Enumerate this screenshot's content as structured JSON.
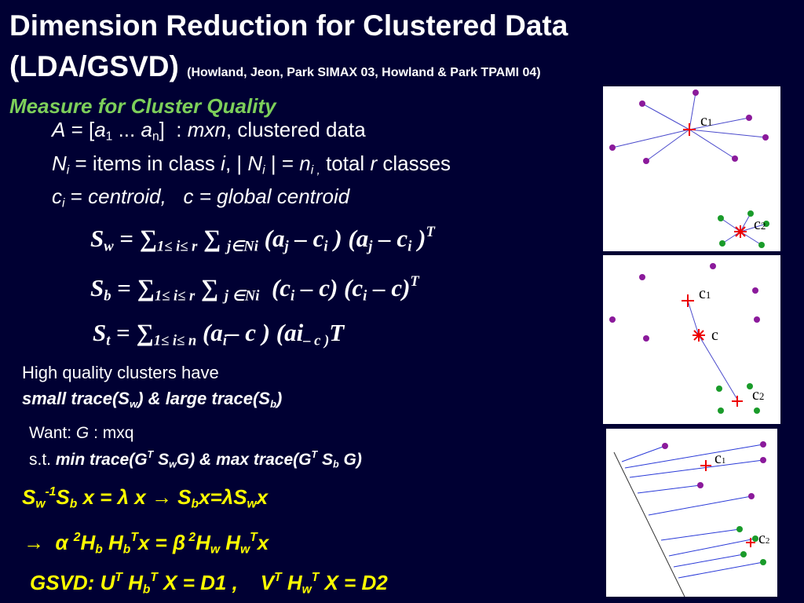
{
  "title": [
    "Dimension Reduction for Clustered Data",
    "(LDA/GSVD)",
    "(Howland, Jeon, Park SIMAX 03, Howland & Park TPAMI 04)"
  ],
  "subtitle": "Measure for Cluster Quality",
  "defs": [
    [
      "A",
      " = [",
      "a",
      "1",
      " ... ",
      "a",
      "n",
      "]  : ",
      "mxn",
      ", clustered data"
    ],
    [
      "N",
      "i",
      " = items in class ",
      "i",
      ", | ",
      "N",
      "i",
      " | = ",
      "n",
      "i ,",
      " total ",
      "r",
      " classes"
    ],
    [
      "c",
      "i",
      " = ",
      "centroid,   c = global centroid"
    ]
  ],
  "formulas": [
    [
      "S",
      "w",
      " = ∑",
      "1≤ i≤ r",
      " ∑ ",
      "j∈N",
      "i",
      " (a",
      "j",
      " – c",
      "i",
      " ) (a",
      "j",
      " – c",
      "i",
      " )",
      "T"
    ],
    [
      "S",
      "b",
      " = ∑",
      "1≤ i≤ r",
      " ∑ ",
      "j ∈N",
      "i",
      "  (c",
      "i",
      " – c) (c",
      "i",
      " – c)",
      "T"
    ],
    [
      "S",
      "t",
      " = ∑",
      "1≤ i≤ n",
      " (a",
      "i",
      "– c ) (a",
      "i",
      "– c )",
      "T"
    ]
  ],
  "quality": [
    [
      "High quality clusters have"
    ],
    [
      "small trace(S",
      "w",
      ") & ",
      "large trace(S",
      "b",
      ")"
    ]
  ],
  "want": [
    [
      "Want: ",
      "G",
      " : mxq"
    ],
    [
      "s.t. ",
      "min trace(G",
      "T",
      " S",
      "w",
      "G) & ",
      "max trace(G",
      "T",
      " S",
      "b",
      " G)"
    ]
  ],
  "equations": [
    [
      "S",
      "w",
      "-1",
      "S",
      "b",
      " x = ",
      "λ",
      " x ",
      "→",
      " S",
      "b",
      "x=",
      "λ",
      "S",
      "w",
      "x"
    ],
    [
      "→",
      "  α ",
      "2",
      "H",
      "b",
      " H",
      "b",
      "T",
      "x = ",
      "β",
      " 2",
      "H",
      "w",
      " H",
      "w",
      "T",
      "x"
    ],
    [
      "GSVD: U",
      "T",
      " H",
      "b",
      "T",
      " X = D1 ,    V",
      "T",
      " H",
      "w",
      "T",
      " X = D2"
    ]
  ],
  "figures": [
    [
      "c",
      "1",
      "c",
      "2"
    ],
    [
      "c",
      "1",
      "c",
      "c",
      "2"
    ],
    [
      "c",
      "1",
      "c",
      "2"
    ]
  ]
}
